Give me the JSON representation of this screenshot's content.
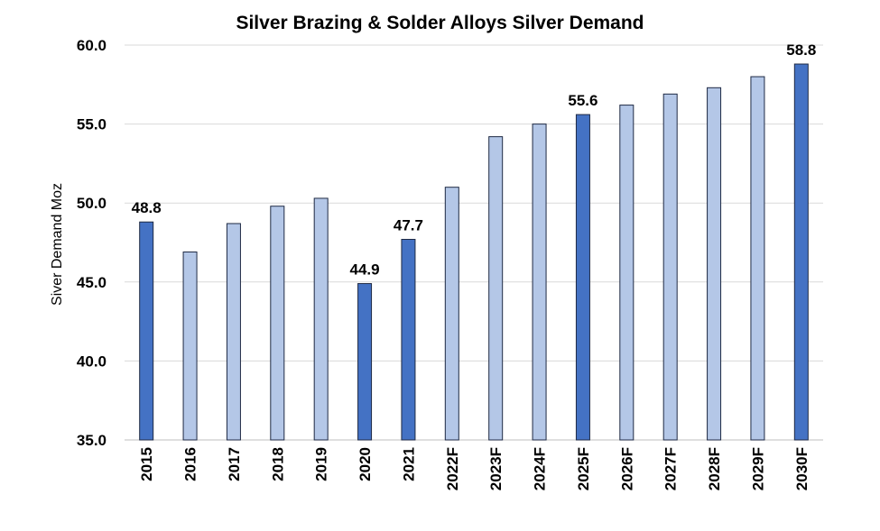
{
  "chart_data": {
    "type": "bar",
    "title": "Silver Brazing & Solder Alloys Silver Demand",
    "xlabel": "",
    "ylabel": "Siver Demand Moz",
    "ylim": [
      35.0,
      60.0
    ],
    "yticks": [
      "35.0",
      "40.0",
      "45.0",
      "50.0",
      "55.0",
      "60.0"
    ],
    "categories": [
      "2015",
      "2016",
      "2017",
      "2018",
      "2019",
      "2020",
      "2021",
      "2022F",
      "2023F",
      "2024F",
      "2025F",
      "2026F",
      "2027F",
      "2028F",
      "2029F",
      "2030F"
    ],
    "values": [
      48.8,
      46.9,
      48.7,
      49.8,
      50.3,
      44.9,
      47.7,
      51.0,
      54.2,
      55.0,
      55.6,
      56.2,
      56.9,
      57.3,
      58.0,
      58.8
    ],
    "highlighted": [
      "2015",
      "2020",
      "2021",
      "2025F",
      "2030F"
    ],
    "data_labels": {
      "2015": "48.8",
      "2020": "44.9",
      "2021": "47.7",
      "2025F": "55.6",
      "2030F": "58.8"
    },
    "grid": true,
    "legend": "none",
    "colors": {
      "highlight": "#4472C4",
      "normal": "#B4C7E7",
      "outline": "#1F2A44",
      "grid": "#D9D9D9"
    }
  }
}
